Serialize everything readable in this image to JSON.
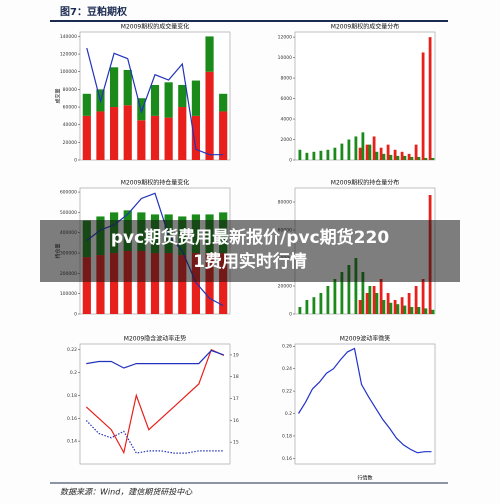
{
  "header": {
    "title": "图7：豆粕期权"
  },
  "panels": [
    {
      "type": "bar-line",
      "title": "M2009期权的成交量变化",
      "ylabel": "成交量",
      "categories": [
        null,
        null,
        null,
        null,
        null,
        null,
        null,
        null,
        null,
        null,
        null
      ],
      "ylim": [
        0,
        145000
      ],
      "yticks": [
        0,
        20000,
        40000,
        60000,
        80000,
        100000,
        120000,
        140000
      ],
      "y2lim": [
        0,
        1.2
      ],
      "series": [
        {
          "type": "bar",
          "color": "#e8201c",
          "values": [
            50000,
            55000,
            60000,
            62000,
            45000,
            50000,
            48000,
            60000,
            50000,
            100000,
            55000
          ]
        },
        {
          "type": "bar",
          "color": "#1a8a1a",
          "values": [
            25000,
            25000,
            45000,
            40000,
            25000,
            35000,
            40000,
            25000,
            40000,
            40000,
            20000
          ]
        },
        {
          "type": "line",
          "axis": "y2",
          "color": "#2233bb",
          "values": [
            1.05,
            0.55,
            1.0,
            0.95,
            0.45,
            0.8,
            0.75,
            0.9,
            0.1,
            0.05,
            0.05
          ]
        }
      ]
    },
    {
      "type": "bar",
      "title": "M2009期权的成交量分布",
      "categories": [
        null,
        null,
        null,
        null,
        null,
        null,
        null,
        null,
        null,
        null,
        null,
        null,
        null,
        null,
        null,
        null,
        null,
        null,
        null,
        null
      ],
      "ylim": [
        0,
        12500
      ],
      "yticks": [
        0,
        2000,
        4000,
        6000,
        8000,
        10000,
        12000
      ],
      "series": [
        {
          "type": "bar",
          "color": "#e8201c",
          "values": [
            0,
            0,
            0,
            0,
            0,
            0,
            0,
            0,
            0,
            1200,
            1500,
            2300,
            1200,
            1500,
            1000,
            800,
            600,
            1500,
            10500,
            12000
          ]
        },
        {
          "type": "bar",
          "color": "#1a8a1a",
          "values": [
            1000,
            700,
            800,
            900,
            1000,
            1200,
            1600,
            2000,
            2300,
            2700,
            1500,
            800,
            600,
            500,
            400,
            400,
            300,
            300,
            200,
            200
          ]
        }
      ]
    },
    {
      "type": "bar-line",
      "title": "M2009期权的持仓量变化",
      "ylabel": "持仓量",
      "categories": [
        null,
        null,
        null,
        null,
        null,
        null,
        null,
        null,
        null,
        null,
        null
      ],
      "ylim": [
        0,
        620000
      ],
      "yticks": [
        0,
        100000,
        200000,
        300000,
        400000,
        500000,
        600000
      ],
      "y2lim": [
        0,
        1.2
      ],
      "series": [
        {
          "type": "bar",
          "color": "#e8201c",
          "values": [
            280000,
            290000,
            300000,
            310000,
            310000,
            300000,
            300000,
            290000,
            300000,
            300000,
            300000
          ]
        },
        {
          "type": "bar",
          "color": "#1a8a1a",
          "values": [
            180000,
            190000,
            200000,
            200000,
            190000,
            190000,
            190000,
            190000,
            190000,
            190000,
            200000
          ]
        },
        {
          "type": "line",
          "axis": "y2",
          "color": "#2233bb",
          "values": [
            0.7,
            0.8,
            0.85,
            0.95,
            1.1,
            1.15,
            0.75,
            0.6,
            0.3,
            0.15,
            0.08
          ]
        }
      ]
    },
    {
      "type": "bar",
      "title": "M2009期权的持仓量分布",
      "categories": [
        null,
        null,
        null,
        null,
        null,
        null,
        null,
        null,
        null,
        null,
        null,
        null,
        null,
        null,
        null,
        null,
        null,
        null,
        null,
        null
      ],
      "ylim": [
        0,
        90000
      ],
      "yticks": [
        0,
        20000,
        40000,
        60000,
        80000
      ],
      "series": [
        {
          "type": "bar",
          "color": "#e8201c",
          "values": [
            0,
            0,
            0,
            0,
            0,
            0,
            0,
            0,
            0,
            10000,
            15000,
            20000,
            25000,
            15000,
            10000,
            12000,
            15000,
            20000,
            25000,
            85000
          ]
        },
        {
          "type": "bar",
          "color": "#1a8a1a",
          "values": [
            5000,
            10000,
            12000,
            15000,
            20000,
            25000,
            30000,
            35000,
            40000,
            30000,
            20000,
            15000,
            10000,
            8000,
            7000,
            6000,
            5000,
            5000,
            4000,
            3000
          ]
        }
      ]
    },
    {
      "type": "line",
      "title": "M2009隐含波动率走势",
      "categories": [
        null,
        null,
        null,
        null,
        null,
        null,
        null,
        null,
        null,
        null,
        null,
        null
      ],
      "ylim": [
        0.12,
        0.225
      ],
      "yticks": [
        0.14,
        0.16,
        0.18,
        0.2,
        0.22
      ],
      "y2lim": [
        14,
        19.5
      ],
      "y2ticks": [
        15,
        16,
        17,
        18,
        19
      ],
      "series": [
        {
          "color": "#e8201c",
          "values": [
            0.17,
            0.16,
            0.15,
            0.13,
            0.18,
            0.15,
            0.16,
            0.17,
            0.18,
            0.19,
            0.22,
            0.215
          ]
        },
        {
          "axis": "y2",
          "color": "#2233bb",
          "values": [
            18.6,
            18.7,
            18.7,
            18.4,
            18.6,
            18.6,
            18.6,
            18.6,
            18.6,
            18.6,
            19.2,
            19.0
          ]
        },
        {
          "axis": "y2",
          "color": "#2233bb",
          "dash": true,
          "values": [
            16.0,
            15.4,
            15.2,
            15.5,
            14.5,
            14.6,
            14.6,
            14.5,
            14.5,
            14.6,
            14.6,
            14.6
          ]
        }
      ]
    },
    {
      "type": "line",
      "title": "M2009波动率微笑",
      "xlabel": "行情数",
      "categories": [
        null,
        null,
        null,
        null,
        null,
        null,
        null,
        null,
        null,
        null,
        null,
        null,
        null,
        null,
        null,
        null,
        null,
        null,
        null,
        null
      ],
      "ylim": [
        0.155,
        0.262
      ],
      "yticks": [
        0.16,
        0.18,
        0.2,
        0.22,
        0.24,
        0.26
      ],
      "series": [
        {
          "color": "#2233cc",
          "values": [
            0.2,
            0.21,
            0.222,
            0.228,
            0.236,
            0.24,
            0.248,
            0.255,
            0.258,
            0.226,
            0.215,
            0.205,
            0.195,
            0.187,
            0.178,
            0.172,
            0.168,
            0.165,
            0.166,
            0.166
          ]
        }
      ]
    }
  ],
  "overlay_lines": [
    "pvc期货费用最新报价/pvc期货220",
    "1费用实时行情"
  ],
  "footer": "数据来源：Wind，建信期货研投中心"
}
